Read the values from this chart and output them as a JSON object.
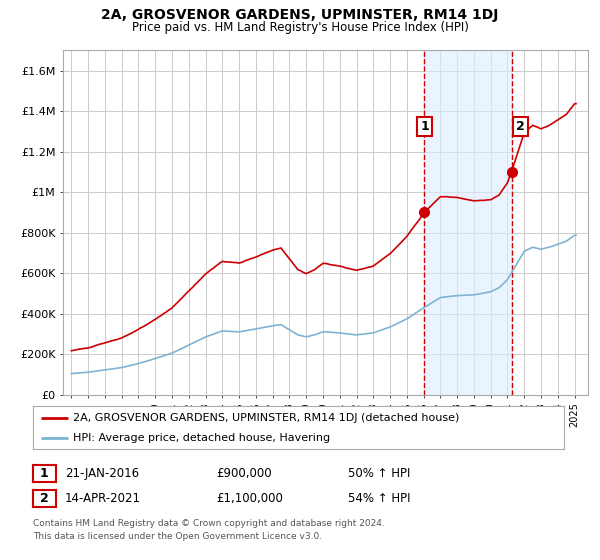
{
  "title": "2A, GROSVENOR GARDENS, UPMINSTER, RM14 1DJ",
  "subtitle": "Price paid vs. HM Land Registry's House Price Index (HPI)",
  "legend_line1": "2A, GROSVENOR GARDENS, UPMINSTER, RM14 1DJ (detached house)",
  "legend_line2": "HPI: Average price, detached house, Havering",
  "footnote1": "Contains HM Land Registry data © Crown copyright and database right 2024.",
  "footnote2": "This data is licensed under the Open Government Licence v3.0.",
  "annotation1_label": "1",
  "annotation1_date": "21-JAN-2016",
  "annotation1_price": "£900,000",
  "annotation1_hpi": "50% ↑ HPI",
  "annotation2_label": "2",
  "annotation2_date": "14-APR-2021",
  "annotation2_price": "£1,100,000",
  "annotation2_hpi": "54% ↑ HPI",
  "red_color": "#cc0000",
  "blue_color": "#7fb3d3",
  "vline_color": "#cc0000",
  "grid_color": "#cccccc",
  "background_color": "#ffffff",
  "span_color": "#ddeeff",
  "yticks": [
    0,
    200000,
    400000,
    600000,
    800000,
    1000000,
    1200000,
    1400000,
    1600000
  ],
  "ytick_labels": [
    "£0",
    "£200K",
    "£400K",
    "£600K",
    "£800K",
    "£1M",
    "£1.2M",
    "£1.4M",
    "£1.6M"
  ],
  "point1_x": 2016.05,
  "point1_y": 900000,
  "point2_x": 2021.28,
  "point2_y": 1100000,
  "xlim": [
    1994.5,
    2025.8
  ],
  "ylim": [
    0,
    1700000
  ]
}
